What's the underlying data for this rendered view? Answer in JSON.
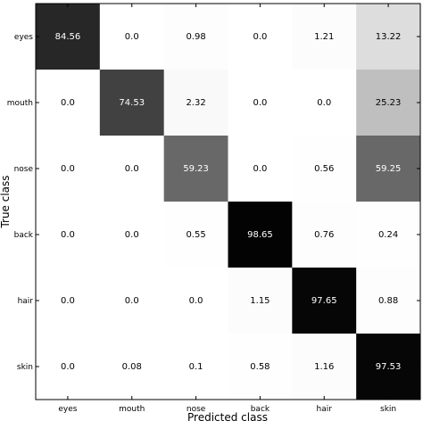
{
  "chart_data": {
    "type": "heatmap",
    "title": "",
    "xlabel": "Predicted class",
    "ylabel": "True class",
    "x_categories": [
      "eyes",
      "mouth",
      "nose",
      "back",
      "hair",
      "skin"
    ],
    "y_categories": [
      "eyes",
      "mouth",
      "nose",
      "back",
      "hair",
      "skin"
    ],
    "values": [
      [
        "84.56",
        "0.0",
        "0.98",
        "0.0",
        "1.21",
        "13.22"
      ],
      [
        "0.0",
        "74.53",
        "2.32",
        "0.0",
        "0.0",
        "25.23"
      ],
      [
        "0.0",
        "0.0",
        "59.23",
        "0.0",
        "0.56",
        "59.25"
      ],
      [
        "0.0",
        "0.0",
        "0.55",
        "98.65",
        "0.76",
        "0.24"
      ],
      [
        "0.0",
        "0.0",
        "0.0",
        "1.15",
        "97.65",
        "0.88"
      ],
      [
        "0.0",
        "0.08",
        "0.1",
        "0.58",
        "1.16",
        "97.53"
      ]
    ],
    "colormap": "grayscale (white = 0, black = 100)",
    "grid": false,
    "legend": "none"
  }
}
